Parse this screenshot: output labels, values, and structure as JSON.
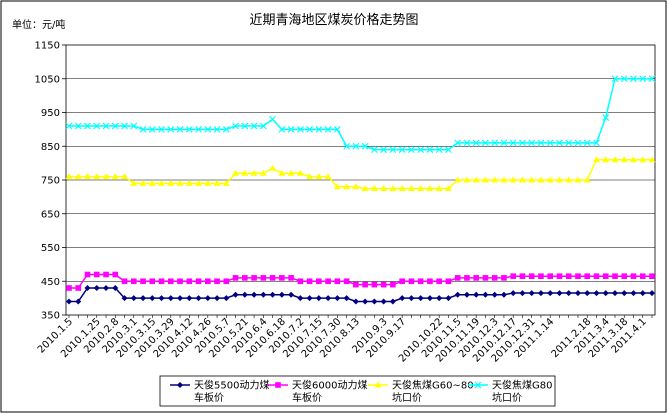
{
  "chart_data": {
    "type": "line",
    "title": "近期青海地区煤炭价格走势图",
    "unit_label": "单位：元/吨",
    "ylim": [
      350,
      1150
    ],
    "yticks": [
      350,
      450,
      550,
      650,
      750,
      850,
      950,
      1050,
      1150
    ],
    "grid": true,
    "legend_position": "bottom",
    "x": [
      "2010.1.5",
      "2010.1.12",
      "2010.1.19",
      "2010.1.25",
      "2010.2.1",
      "2010.2.8",
      "2010.2.22",
      "2010.3.1",
      "2010.3.8",
      "2010.3.15",
      "2010.3.22",
      "2010.3.29",
      "2010.4.5",
      "2010.4.12",
      "2010.4.19",
      "2010.4.26",
      "2010.5.3",
      "2010.5.7",
      "2010.5.14",
      "2010.5.21",
      "2010.5.28",
      "2010.6.4",
      "2010.6.11",
      "2010.6.18",
      "2010.6.25",
      "2010.7.2",
      "2010.7.9",
      "2010.7.15",
      "2010.7.23",
      "2010.7.30",
      "2010.8.6",
      "2010.8.13",
      "2010.8.20",
      "2010.8.27",
      "2010.9.3",
      "2010.9.10",
      "2010.9.17",
      "2010.9.24",
      "2010.10.8",
      "2010.10.15",
      "2010.10.22",
      "2010.10.29",
      "2010.11.5",
      "2010.11.12",
      "2010.11.19",
      "2010.11.26",
      "2010.12.3",
      "2010.12.10",
      "2010.12.17",
      "2010.12.24",
      "2010.12.31",
      "2011.1.7",
      "2011.1.14",
      "2011.1.21",
      "2011.1.28",
      "2011.2.11",
      "2011.2.18",
      "2011.2.25",
      "2011.3.4",
      "2011.3.11",
      "2011.3.18",
      "2011.3.25",
      "2011.4.1",
      "2011.4.8"
    ],
    "xtick_labels": [
      "2010.1.5",
      "2010.1.25",
      "2010.2.8",
      "2010.3.1",
      "2010.3.15",
      "2010.3.29",
      "2010.4.12",
      "2010.4.26",
      "2010.5.7",
      "2010.5.21",
      "2010.6.4",
      "2010.6.18",
      "2010.7.2",
      "2010.7.15",
      "2010.7.30",
      "2010.8.13",
      "2010.9.3",
      "2010.9.17",
      "2010.10.22",
      "2010.11.5",
      "2010.11.19",
      "2010.12.3",
      "2010.12.17",
      "2010.12.31",
      "2011.1.14",
      "2011.2.18",
      "2011.3.4",
      "2011.3.18",
      "2011.4.1"
    ],
    "series": [
      {
        "name": "天俊5500动力煤车板价",
        "legend_lines": [
          "天俊5500动力煤",
          "车板价"
        ],
        "color": "#000080",
        "marker": "diamond",
        "values": [
          390,
          390,
          430,
          430,
          430,
          430,
          400,
          400,
          400,
          400,
          400,
          400,
          400,
          400,
          400,
          400,
          400,
          400,
          410,
          410,
          410,
          410,
          410,
          410,
          410,
          400,
          400,
          400,
          400,
          400,
          400,
          390,
          390,
          390,
          390,
          390,
          400,
          400,
          400,
          400,
          400,
          400,
          410,
          410,
          410,
          410,
          410,
          410,
          415,
          415,
          415,
          415,
          415,
          415,
          415,
          415,
          415,
          415,
          415,
          415,
          415,
          415,
          415,
          415
        ]
      },
      {
        "name": "天俊6000动力煤车板价",
        "legend_lines": [
          "天俊6000动力煤",
          "车板价"
        ],
        "color": "#ff00ff",
        "marker": "square",
        "values": [
          430,
          430,
          470,
          470,
          470,
          470,
          450,
          450,
          450,
          450,
          450,
          450,
          450,
          450,
          450,
          450,
          450,
          450,
          460,
          460,
          460,
          460,
          460,
          460,
          460,
          450,
          450,
          450,
          450,
          450,
          450,
          440,
          440,
          440,
          440,
          440,
          450,
          450,
          450,
          450,
          450,
          450,
          460,
          460,
          460,
          460,
          460,
          460,
          465,
          465,
          465,
          465,
          465,
          465,
          465,
          465,
          465,
          465,
          465,
          465,
          465,
          465,
          465,
          465
        ]
      },
      {
        "name": "天俊焦煤G60~80坑口价",
        "legend_lines": [
          "天俊焦煤G60~80",
          "坑口价"
        ],
        "color": "#ffff00",
        "marker": "triangle",
        "values": [
          760,
          760,
          760,
          760,
          760,
          760,
          760,
          740,
          740,
          740,
          740,
          740,
          740,
          740,
          740,
          740,
          740,
          740,
          770,
          770,
          770,
          770,
          785,
          770,
          770,
          770,
          760,
          760,
          760,
          730,
          730,
          730,
          725,
          725,
          725,
          725,
          725,
          725,
          725,
          725,
          725,
          725,
          750,
          750,
          750,
          750,
          750,
          750,
          750,
          750,
          750,
          750,
          750,
          750,
          750,
          750,
          750,
          810,
          810,
          810,
          810,
          810,
          810,
          810
        ]
      },
      {
        "name": "天俊焦煤G80坑口价",
        "legend_lines": [
          "天俊焦煤G80",
          "坑口价"
        ],
        "color": "#00ffff",
        "marker": "x",
        "values": [
          910,
          910,
          910,
          910,
          910,
          910,
          910,
          910,
          900,
          900,
          900,
          900,
          900,
          900,
          900,
          900,
          900,
          900,
          910,
          910,
          910,
          910,
          930,
          900,
          900,
          900,
          900,
          900,
          900,
          900,
          850,
          850,
          850,
          840,
          840,
          840,
          840,
          840,
          840,
          840,
          840,
          840,
          860,
          860,
          860,
          860,
          860,
          860,
          860,
          860,
          860,
          860,
          860,
          860,
          860,
          860,
          860,
          860,
          935,
          1050,
          1050,
          1050,
          1050,
          1050
        ]
      }
    ]
  }
}
